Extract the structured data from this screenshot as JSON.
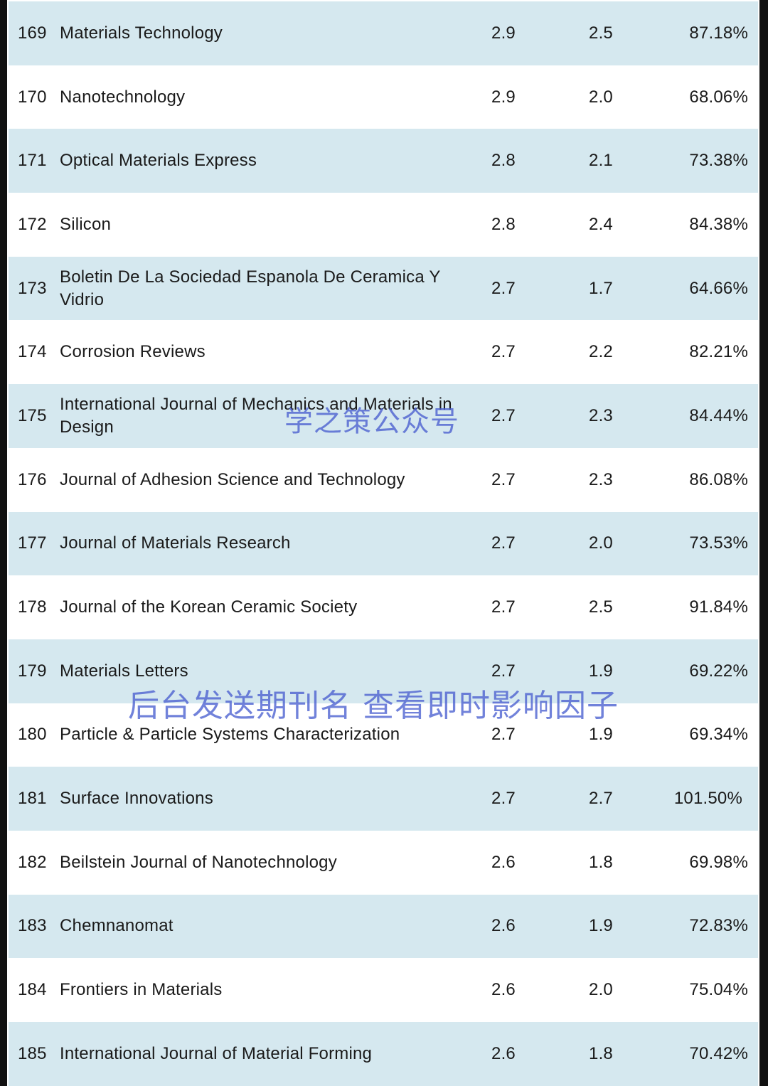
{
  "rows": [
    {
      "rank": "169",
      "name": "Materials Technology",
      "v1": "2.9",
      "v2": "2.5",
      "pct": "87.18%"
    },
    {
      "rank": "170",
      "name": "Nanotechnology",
      "v1": "2.9",
      "v2": "2.0",
      "pct": "68.06%"
    },
    {
      "rank": "171",
      "name": "Optical Materials Express",
      "v1": "2.8",
      "v2": "2.1",
      "pct": "73.38%"
    },
    {
      "rank": "172",
      "name": "Silicon",
      "v1": "2.8",
      "v2": "2.4",
      "pct": "84.38%"
    },
    {
      "rank": "173",
      "name": "Boletin De La Sociedad Espanola De Ceramica Y Vidrio",
      "v1": "2.7",
      "v2": "1.7",
      "pct": "64.66%"
    },
    {
      "rank": "174",
      "name": "Corrosion Reviews",
      "v1": "2.7",
      "v2": "2.2",
      "pct": "82.21%"
    },
    {
      "rank": "175",
      "name": "International Journal of Mechanics and Materials in Design",
      "v1": "2.7",
      "v2": "2.3",
      "pct": "84.44%"
    },
    {
      "rank": "176",
      "name": "Journal of Adhesion Science and Technology",
      "v1": "2.7",
      "v2": "2.3",
      "pct": "86.08%"
    },
    {
      "rank": "177",
      "name": "Journal of Materials Research",
      "v1": "2.7",
      "v2": "2.0",
      "pct": "73.53%"
    },
    {
      "rank": "178",
      "name": "Journal of the Korean Ceramic Society",
      "v1": "2.7",
      "v2": "2.5",
      "pct": "91.84%"
    },
    {
      "rank": "179",
      "name": "Materials Letters",
      "v1": "2.7",
      "v2": "1.9",
      "pct": "69.22%"
    },
    {
      "rank": "180",
      "name": "Particle & Particle Systems Characterization",
      "v1": "2.7",
      "v2": "1.9",
      "pct": "69.34%"
    },
    {
      "rank": "181",
      "name": "Surface Innovations",
      "v1": "2.7",
      "v2": "2.7",
      "pct": "101.50%"
    },
    {
      "rank": "182",
      "name": "Beilstein Journal of Nanotechnology",
      "v1": "2.6",
      "v2": "1.8",
      "pct": "69.98%"
    },
    {
      "rank": "183",
      "name": "Chemnanomat",
      "v1": "2.6",
      "v2": "1.9",
      "pct": "72.83%"
    },
    {
      "rank": "184",
      "name": "Frontiers in Materials",
      "v1": "2.6",
      "v2": "2.0",
      "pct": "75.04%"
    },
    {
      "rank": "185",
      "name": "International Journal of Material Forming",
      "v1": "2.6",
      "v2": "1.8",
      "pct": "70.42%"
    }
  ],
  "watermarks": {
    "account": "学之策公众号",
    "cta": "后台发送期刊名 查看即时影响因子"
  },
  "colors": {
    "row_shaded": "#d5e8ef",
    "row_plain": "#ffffff",
    "watermark": "#4a5fd0"
  }
}
